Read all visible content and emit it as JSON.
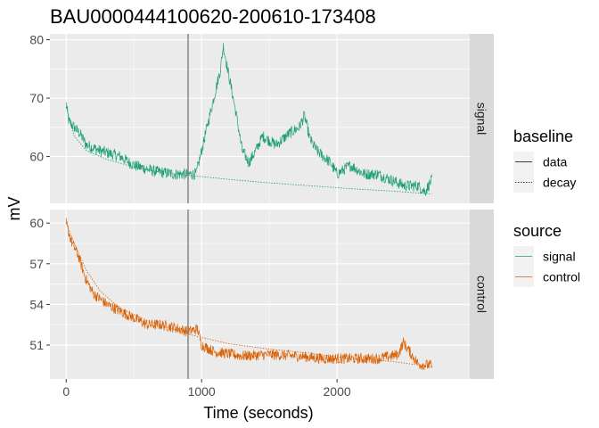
{
  "chart_data": {
    "type": "line",
    "title": "BAU0000444100620-200610-173408",
    "xlabel": "Time (seconds)",
    "ylabel": "mV",
    "x_range": [
      -120,
      2980
    ],
    "x_ticks": [
      0,
      1000,
      2000
    ],
    "x_tick_labels": [
      "0",
      "1000",
      "2000"
    ],
    "vline_x": 900,
    "vline_color": "#7f7f7f",
    "panels": [
      {
        "facet_label": "signal",
        "y_range": [
          52,
          81
        ],
        "y_ticks": [
          60,
          70,
          80
        ],
        "y_tick_labels": [
          "60",
          "70",
          "80"
        ],
        "color": "#1b9e77",
        "data_keypoints": [
          [
            0,
            69
          ],
          [
            20,
            66
          ],
          [
            100,
            64
          ],
          [
            150,
            62
          ],
          [
            250,
            61
          ],
          [
            400,
            60
          ],
          [
            500,
            58.5
          ],
          [
            650,
            57.5
          ],
          [
            800,
            57
          ],
          [
            900,
            57
          ],
          [
            960,
            57
          ],
          [
            1000,
            61
          ],
          [
            1050,
            66
          ],
          [
            1100,
            71
          ],
          [
            1140,
            75
          ],
          [
            1160,
            79
          ],
          [
            1200,
            74
          ],
          [
            1250,
            68
          ],
          [
            1300,
            61
          ],
          [
            1350,
            59
          ],
          [
            1400,
            61
          ],
          [
            1450,
            63.5
          ],
          [
            1550,
            62
          ],
          [
            1650,
            64
          ],
          [
            1720,
            65
          ],
          [
            1760,
            67
          ],
          [
            1800,
            63
          ],
          [
            1850,
            61
          ],
          [
            1900,
            60
          ],
          [
            1950,
            59
          ],
          [
            2000,
            57
          ],
          [
            2100,
            58.5
          ],
          [
            2200,
            57
          ],
          [
            2300,
            57
          ],
          [
            2400,
            56
          ],
          [
            2500,
            55
          ],
          [
            2600,
            55
          ],
          [
            2650,
            54
          ],
          [
            2700,
            56
          ]
        ],
        "noise": 1.0,
        "decay_keypoints": [
          [
            0,
            68.5
          ],
          [
            60,
            63.5
          ],
          [
            150,
            61
          ],
          [
            300,
            59.5
          ],
          [
            500,
            58.2
          ],
          [
            700,
            57.3
          ],
          [
            900,
            56.8
          ],
          [
            1200,
            56.1
          ],
          [
            1500,
            55.5
          ],
          [
            1800,
            55
          ],
          [
            2100,
            54.5
          ],
          [
            2400,
            54.1
          ],
          [
            2700,
            53.6
          ]
        ]
      },
      {
        "facet_label": "control",
        "y_range": [
          48.5,
          61
        ],
        "y_ticks": [
          51,
          54,
          57,
          60
        ],
        "y_tick_labels": [
          "51",
          "54",
          "57",
          "60"
        ],
        "color": "#d95f02",
        "data_keypoints": [
          [
            0,
            60
          ],
          [
            40,
            58.6
          ],
          [
            90,
            57.6
          ],
          [
            140,
            56
          ],
          [
            200,
            54.8
          ],
          [
            300,
            54
          ],
          [
            400,
            53.5
          ],
          [
            500,
            53
          ],
          [
            600,
            52.5
          ],
          [
            700,
            52.5
          ],
          [
            800,
            52.3
          ],
          [
            900,
            52
          ],
          [
            970,
            52.2
          ],
          [
            1000,
            51
          ],
          [
            1100,
            50.5
          ],
          [
            1300,
            50.2
          ],
          [
            1500,
            50.3
          ],
          [
            1700,
            50.2
          ],
          [
            1900,
            50
          ],
          [
            2100,
            50
          ],
          [
            2300,
            50
          ],
          [
            2450,
            50.3
          ],
          [
            2490,
            51.2
          ],
          [
            2550,
            50.3
          ],
          [
            2600,
            49.6
          ],
          [
            2700,
            49.5
          ]
        ],
        "noise": 0.4,
        "decay_keypoints": [
          [
            0,
            60
          ],
          [
            60,
            58.5
          ],
          [
            150,
            56.5
          ],
          [
            250,
            55
          ],
          [
            400,
            53.7
          ],
          [
            600,
            52.8
          ],
          [
            900,
            51.8
          ],
          [
            1200,
            51.1
          ],
          [
            1500,
            50.7
          ],
          [
            1800,
            50.4
          ],
          [
            2100,
            50
          ],
          [
            2400,
            49.8
          ],
          [
            2700,
            49.4
          ]
        ]
      }
    ],
    "legend": [
      {
        "title": "baseline",
        "entries": [
          {
            "label": "data",
            "style": "solid"
          },
          {
            "label": "decay",
            "style": "dotted"
          }
        ]
      },
      {
        "title": "source",
        "entries": [
          {
            "label": "signal",
            "color": "#1b9e77"
          },
          {
            "label": "control",
            "color": "#d95f02"
          }
        ]
      }
    ],
    "colors": {
      "panel_bg": "#ebebeb",
      "grid_major": "#ffffff",
      "strip_bg": "#d9d9d9",
      "legend_key_bg": "#f2f2f2"
    }
  }
}
